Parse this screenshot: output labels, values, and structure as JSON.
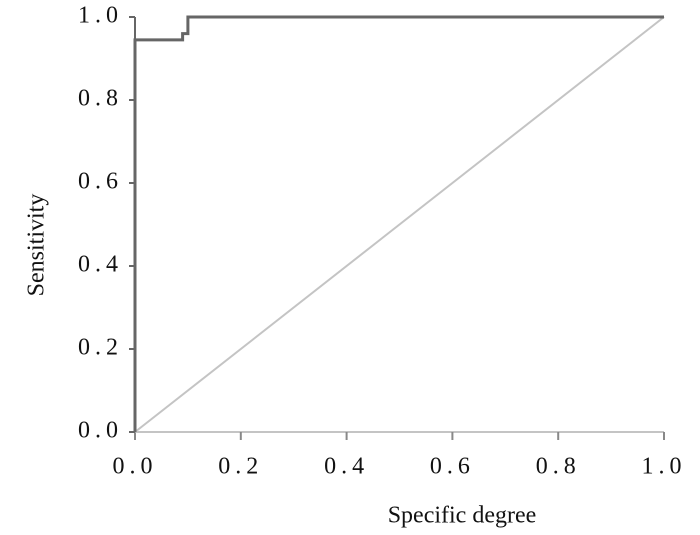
{
  "chart_data": {
    "type": "line",
    "x_label": "Specific degree",
    "y_label": "Sensitivity",
    "xlim": [
      0,
      1
    ],
    "ylim": [
      0,
      1
    ],
    "xticks": [
      {
        "value": 0,
        "label": "0.0"
      },
      {
        "value": 0.2,
        "label": "0.2"
      },
      {
        "value": 0.4,
        "label": "0.4"
      },
      {
        "value": 0.6,
        "label": "0.6"
      },
      {
        "value": 0.8,
        "label": "0.8"
      },
      {
        "value": 1,
        "label": "1.0"
      }
    ],
    "yticks": [
      {
        "value": 0,
        "label": "0.0"
      },
      {
        "value": 0.2,
        "label": "0.2"
      },
      {
        "value": 0.4,
        "label": "0.4"
      },
      {
        "value": 0.6,
        "label": "0.6"
      },
      {
        "value": 0.8,
        "label": "0.8"
      },
      {
        "value": 1,
        "label": "1.0"
      }
    ],
    "series": [
      {
        "color": "#666666",
        "x": [
          0,
          0,
          0.09,
          0.09,
          0.1,
          0.1,
          1
        ],
        "values": [
          0,
          0.945,
          0.945,
          0.96,
          0.96,
          1,
          1
        ]
      },
      {
        "color": "#c4c4c4",
        "x": [
          0,
          1
        ],
        "values": [
          0,
          1
        ]
      }
    ]
  }
}
